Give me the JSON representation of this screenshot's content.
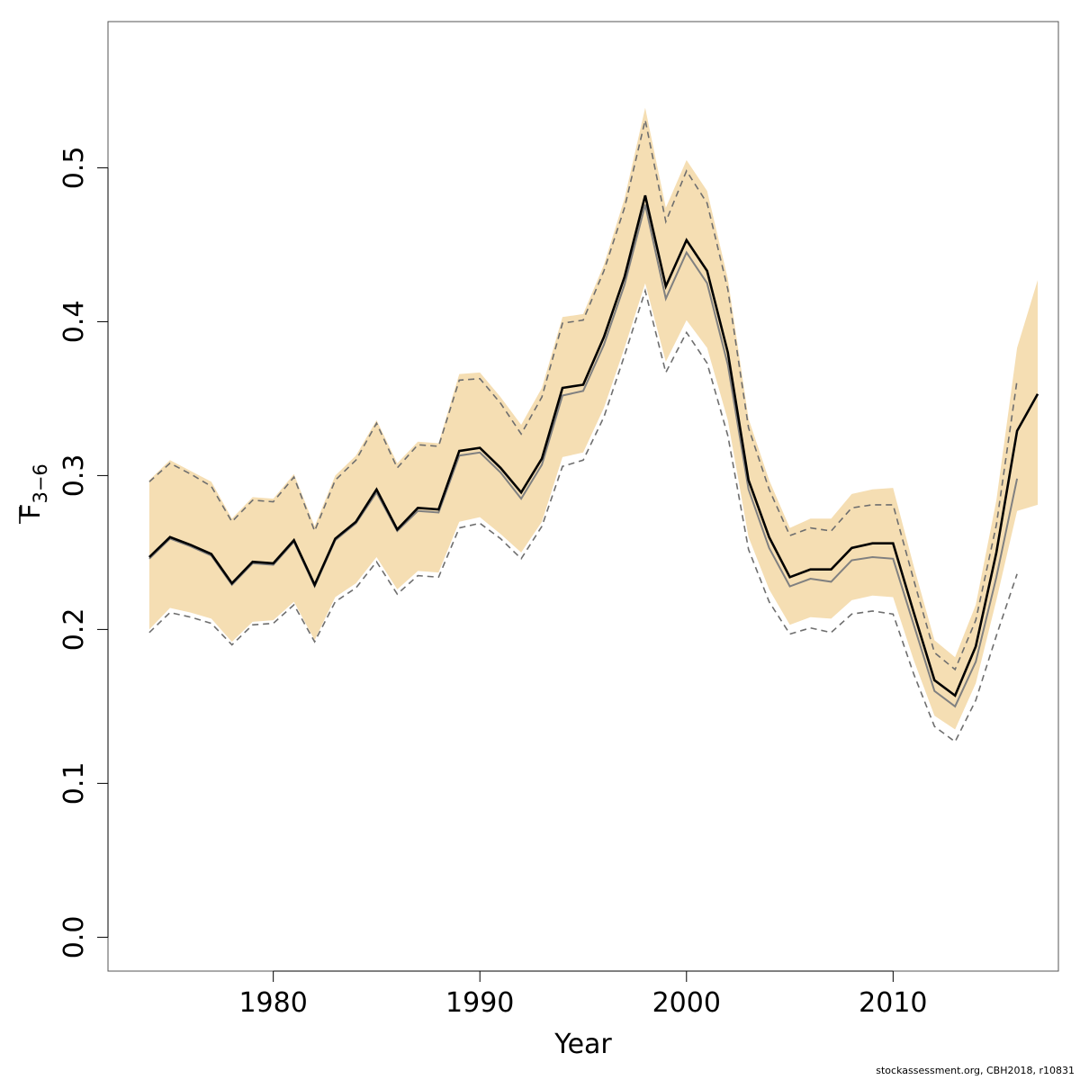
{
  "footer": "stockassessment.org, CBH2018, r10831",
  "chart_data": {
    "type": "line",
    "xlabel": "Year",
    "ylabel": "F",
    "ylabel_sub": "3−6",
    "xlim": [
      1972,
      2018
    ],
    "ylim": [
      -0.022,
      0.595
    ],
    "x_ticks": [
      1980,
      1990,
      2000,
      2010
    ],
    "y_ticks": [
      "0.0",
      "0.1",
      "0.2",
      "0.3",
      "0.4",
      "0.5"
    ],
    "colors": {
      "band": "#f5deb3",
      "estimate": "#000000",
      "previous": "#808080"
    },
    "estimate": {
      "x": [
        1974,
        1975,
        1976,
        1977,
        1978,
        1979,
        1980,
        1981,
        1982,
        1983,
        1984,
        1985,
        1986,
        1987,
        1988,
        1989,
        1990,
        1991,
        1992,
        1993,
        1994,
        1995,
        1996,
        1997,
        1998,
        1999,
        2000,
        2001,
        2002,
        2003,
        2004,
        2005,
        2006,
        2007,
        2008,
        2009,
        2010,
        2011,
        2012,
        2013,
        2014,
        2015,
        2016,
        2017
      ],
      "y": [
        0.247,
        0.26,
        0.255,
        0.249,
        0.23,
        0.244,
        0.243,
        0.258,
        0.229,
        0.259,
        0.27,
        0.291,
        0.265,
        0.279,
        0.278,
        0.316,
        0.318,
        0.305,
        0.289,
        0.311,
        0.357,
        0.359,
        0.39,
        0.429,
        0.482,
        0.423,
        0.453,
        0.433,
        0.38,
        0.297,
        0.26,
        0.234,
        0.239,
        0.239,
        0.253,
        0.256,
        0.256,
        0.211,
        0.167,
        0.157,
        0.189,
        0.25,
        0.329,
        0.353
      ],
      "lower": [
        0.2,
        0.214,
        0.211,
        0.207,
        0.192,
        0.205,
        0.206,
        0.218,
        0.193,
        0.221,
        0.23,
        0.247,
        0.226,
        0.238,
        0.237,
        0.27,
        0.273,
        0.262,
        0.25,
        0.27,
        0.312,
        0.315,
        0.344,
        0.383,
        0.425,
        0.374,
        0.401,
        0.383,
        0.336,
        0.26,
        0.226,
        0.203,
        0.208,
        0.207,
        0.219,
        0.222,
        0.221,
        0.18,
        0.144,
        0.135,
        0.165,
        0.219,
        0.277,
        0.281
      ],
      "upper": [
        0.297,
        0.31,
        0.303,
        0.296,
        0.272,
        0.286,
        0.285,
        0.301,
        0.267,
        0.3,
        0.313,
        0.336,
        0.308,
        0.322,
        0.321,
        0.366,
        0.367,
        0.351,
        0.333,
        0.357,
        0.403,
        0.405,
        0.437,
        0.48,
        0.539,
        0.474,
        0.505,
        0.485,
        0.428,
        0.337,
        0.297,
        0.266,
        0.272,
        0.272,
        0.288,
        0.291,
        0.292,
        0.241,
        0.193,
        0.182,
        0.216,
        0.284,
        0.383,
        0.427
      ]
    },
    "previous": {
      "x": [
        1974,
        1975,
        1976,
        1977,
        1978,
        1979,
        1980,
        1981,
        1982,
        1983,
        1984,
        1985,
        1986,
        1987,
        1988,
        1989,
        1990,
        1991,
        1992,
        1993,
        1994,
        1995,
        1996,
        1997,
        1998,
        1999,
        2000,
        2001,
        2002,
        2003,
        2004,
        2005,
        2006,
        2007,
        2008,
        2009,
        2010,
        2011,
        2012,
        2013,
        2014,
        2015,
        2016
      ],
      "y": [
        0.246,
        0.259,
        0.254,
        0.248,
        0.229,
        0.243,
        0.242,
        0.257,
        0.228,
        0.258,
        0.269,
        0.289,
        0.264,
        0.277,
        0.276,
        0.313,
        0.315,
        0.302,
        0.285,
        0.307,
        0.352,
        0.355,
        0.385,
        0.424,
        0.476,
        0.415,
        0.445,
        0.425,
        0.372,
        0.291,
        0.253,
        0.228,
        0.233,
        0.231,
        0.245,
        0.247,
        0.246,
        0.203,
        0.16,
        0.15,
        0.179,
        0.234,
        0.298
      ],
      "lower": [
        0.198,
        0.211,
        0.208,
        0.204,
        0.19,
        0.203,
        0.204,
        0.216,
        0.192,
        0.218,
        0.227,
        0.244,
        0.223,
        0.235,
        0.234,
        0.266,
        0.269,
        0.259,
        0.246,
        0.267,
        0.306,
        0.31,
        0.338,
        0.378,
        0.42,
        0.367,
        0.393,
        0.373,
        0.326,
        0.252,
        0.218,
        0.197,
        0.201,
        0.198,
        0.21,
        0.212,
        0.21,
        0.171,
        0.137,
        0.127,
        0.154,
        0.196,
        0.236
      ],
      "upper": [
        0.296,
        0.308,
        0.301,
        0.293,
        0.27,
        0.284,
        0.283,
        0.299,
        0.264,
        0.297,
        0.31,
        0.334,
        0.305,
        0.32,
        0.319,
        0.362,
        0.363,
        0.347,
        0.327,
        0.351,
        0.399,
        0.401,
        0.433,
        0.474,
        0.531,
        0.465,
        0.498,
        0.477,
        0.421,
        0.331,
        0.291,
        0.261,
        0.266,
        0.264,
        0.279,
        0.281,
        0.281,
        0.232,
        0.185,
        0.174,
        0.206,
        0.268,
        0.362
      ]
    }
  }
}
